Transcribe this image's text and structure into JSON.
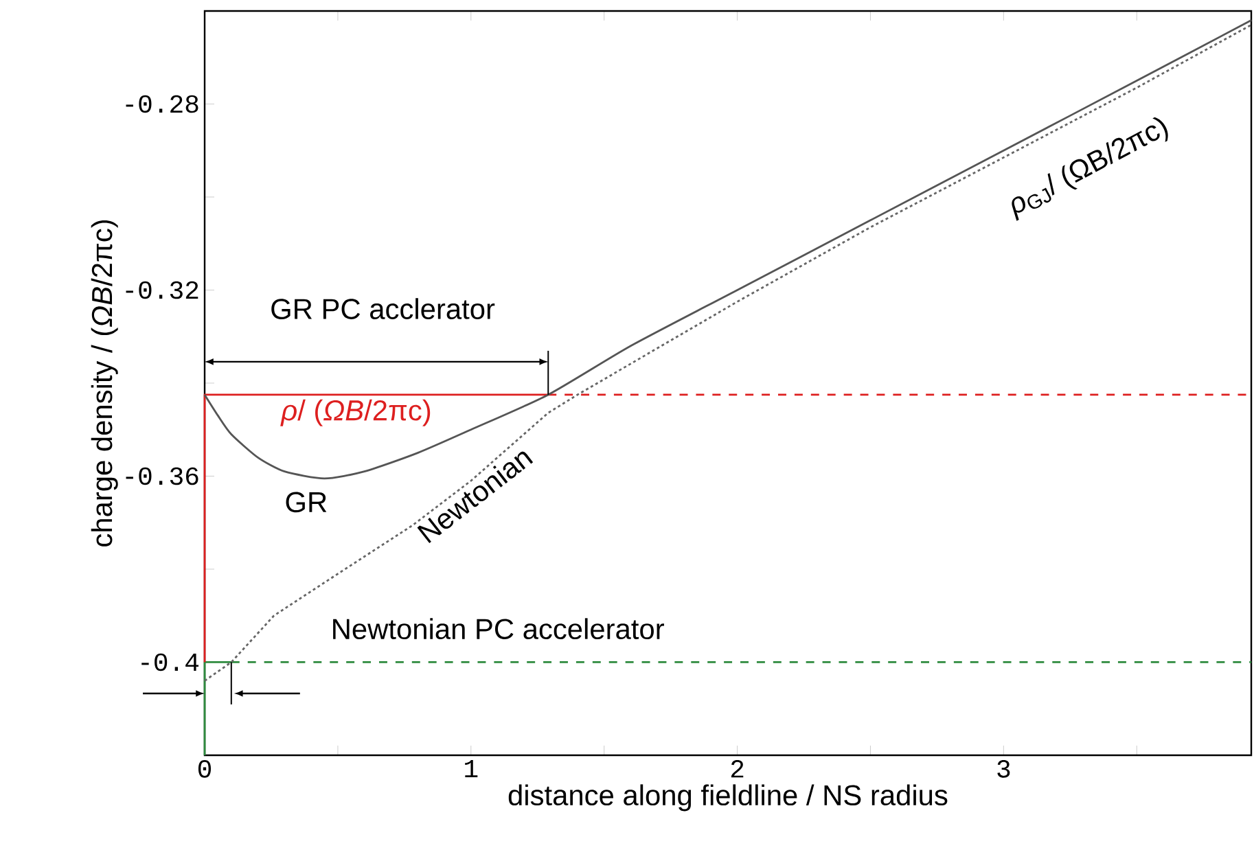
{
  "chart_data": {
    "type": "line",
    "xlabel": "distance along fieldline / NS radius",
    "ylabel": "charge density / (*ΩB*/2πc)",
    "xlim": [
      0,
      3.93
    ],
    "ylim": [
      -0.42,
      -0.26
    ],
    "xticks": [
      0,
      {
        "value": 0.5,
        "label": null
      },
      1,
      {
        "value": 1.5,
        "label": null
      },
      2,
      {
        "value": 2.5,
        "label": null
      },
      3,
      {
        "value": 3.5,
        "label": null
      }
    ],
    "yticks": [
      -0.4,
      {
        "value": -0.38,
        "label": null
      },
      -0.36,
      {
        "value": -0.34,
        "label": null
      },
      -0.32,
      {
        "value": -0.3,
        "label": null
      },
      -0.28
    ],
    "series": [
      {
        "color": "#2e8b3e",
        "line_style": "solid",
        "x": [
          0,
          0,
          0.1
        ],
        "values": [
          -0.42,
          -0.4,
          -0.4
        ]
      },
      {
        "color": "#2e8b3e",
        "line_style": "dashed",
        "x": [
          0.1,
          3.93
        ],
        "values": [
          -0.4,
          -0.4
        ]
      },
      {
        "color": "#dd1f1f",
        "line_style": "solid",
        "x": [
          0,
          0,
          1.29
        ],
        "values": [
          -0.4,
          -0.3425,
          -0.3425
        ]
      },
      {
        "color": "#dd1f1f",
        "line_style": "dashed",
        "x": [
          1.29,
          3.93
        ],
        "values": [
          -0.3425,
          -0.3425
        ]
      },
      {
        "color": "#555555",
        "line_style": "solid",
        "x": [
          0,
          0.05,
          0.1,
          0.2,
          0.3,
          0.45,
          0.6,
          0.8,
          1.0,
          1.29,
          1.6,
          2,
          2.5,
          3,
          3.5,
          3.93
        ],
        "values": [
          -0.3425,
          -0.347,
          -0.351,
          -0.356,
          -0.359,
          -0.3605,
          -0.359,
          -0.355,
          -0.35,
          -0.3425,
          -0.332,
          -0.32,
          -0.305,
          -0.29,
          -0.275,
          -0.262
        ]
      },
      {
        "color": "#666666",
        "line_style": "dotted",
        "x": [
          0,
          0.1,
          0.26,
          0.5,
          0.78,
          1.0,
          1.29,
          1.4,
          2,
          2.5,
          3,
          3.5,
          3.93
        ],
        "values": [
          -0.404,
          -0.4,
          -0.39,
          -0.381,
          -0.3706,
          -0.361,
          -0.3464,
          -0.3425,
          -0.3225,
          -0.3065,
          -0.2915,
          -0.2765,
          -0.263
        ]
      }
    ],
    "annotations": [
      "GR PC acclerator",
      "*ρ*/ (*ΩB*/2πc)",
      "GR",
      "Newtonian",
      "Newtonian PC accelerator",
      "*ρ*$_{GJ}$/ (ΩB/2πc)"
    ]
  }
}
